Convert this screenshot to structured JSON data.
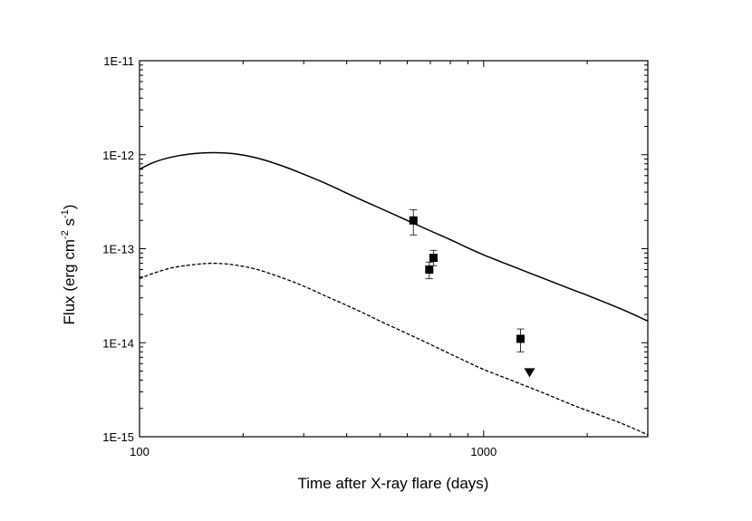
{
  "chart_data": {
    "type": "scatter",
    "xlabel": "Time after X-ray flare (days)",
    "ylabel": {
      "prefix": "Flux (erg cm",
      "sup1": "-2",
      "mid": " s",
      "sup2": "-1",
      "suffix": ")"
    },
    "x_scale": "log",
    "y_scale": "log",
    "xlim": [
      100,
      3000
    ],
    "ylim": [
      1e-15,
      1e-11
    ],
    "x_ticks": [
      {
        "value": 100,
        "label": "100"
      },
      {
        "value": 1000,
        "label": "1000"
      }
    ],
    "y_ticks": [
      {
        "value": 1e-15,
        "label": "1E-15"
      },
      {
        "value": 1e-14,
        "label": "1E-14"
      },
      {
        "value": 1e-13,
        "label": "1E-13"
      },
      {
        "value": 1e-12,
        "label": "1E-12"
      },
      {
        "value": 1e-11,
        "label": "1E-11"
      }
    ],
    "grid": false,
    "series": [
      {
        "kind": "line",
        "style": "solid",
        "color": "#000000",
        "points": [
          [
            100,
            7e-13
          ],
          [
            110,
            8.3e-13
          ],
          [
            125,
            9.5e-13
          ],
          [
            145,
            1.03e-12
          ],
          [
            165,
            1.05e-12
          ],
          [
            190,
            1.02e-12
          ],
          [
            220,
            9.2e-13
          ],
          [
            260,
            7.6e-13
          ],
          [
            300,
            6.2e-13
          ],
          [
            350,
            4.9e-13
          ],
          [
            400,
            3.9e-13
          ],
          [
            450,
            3.2e-13
          ],
          [
            500,
            2.7e-13
          ],
          [
            600,
            2e-13
          ],
          [
            700,
            1.55e-13
          ],
          [
            800,
            1.25e-13
          ],
          [
            900,
            1.02e-13
          ],
          [
            1000,
            8.6e-14
          ],
          [
            1200,
            6.6e-14
          ],
          [
            1500,
            4.8e-14
          ],
          [
            1800,
            3.7e-14
          ],
          [
            2000,
            3.2e-14
          ],
          [
            2500,
            2.3e-14
          ],
          [
            3000,
            1.7e-14
          ]
        ]
      },
      {
        "kind": "line",
        "style": "dashed",
        "color": "#000000",
        "points": [
          [
            100,
            4.8e-14
          ],
          [
            110,
            5.5e-14
          ],
          [
            125,
            6.3e-14
          ],
          [
            145,
            6.8e-14
          ],
          [
            165,
            7e-14
          ],
          [
            190,
            6.7e-14
          ],
          [
            220,
            6e-14
          ],
          [
            260,
            4.9e-14
          ],
          [
            300,
            4e-14
          ],
          [
            350,
            3.1e-14
          ],
          [
            400,
            2.5e-14
          ],
          [
            450,
            2.05e-14
          ],
          [
            500,
            1.7e-14
          ],
          [
            600,
            1.25e-14
          ],
          [
            700,
            9.6e-15
          ],
          [
            800,
            7.6e-15
          ],
          [
            900,
            6.2e-15
          ],
          [
            1000,
            5.2e-15
          ],
          [
            1200,
            4e-15
          ],
          [
            1500,
            2.9e-15
          ],
          [
            1800,
            2.2e-15
          ],
          [
            2000,
            1.9e-15
          ],
          [
            2500,
            1.4e-15
          ],
          [
            3000,
            1.05e-15
          ]
        ]
      },
      {
        "kind": "points",
        "marker": "square",
        "color": "#000000",
        "points": [
          {
            "x": 625,
            "y": 2e-13,
            "ylo": 1.4e-13,
            "yhi": 2.6e-13
          },
          {
            "x": 695,
            "y": 6e-14,
            "ylo": 4.8e-14,
            "yhi": 7.2e-14
          },
          {
            "x": 715,
            "y": 8e-14,
            "ylo": 6.6e-14,
            "yhi": 9.6e-14
          },
          {
            "x": 1280,
            "y": 1.1e-14,
            "ylo": 8e-15,
            "yhi": 1.4e-14
          }
        ]
      },
      {
        "kind": "points",
        "marker": "triangle-down",
        "note": "upper limit",
        "color": "#000000",
        "points": [
          {
            "x": 1360,
            "y": 4.8e-15
          }
        ]
      }
    ]
  }
}
